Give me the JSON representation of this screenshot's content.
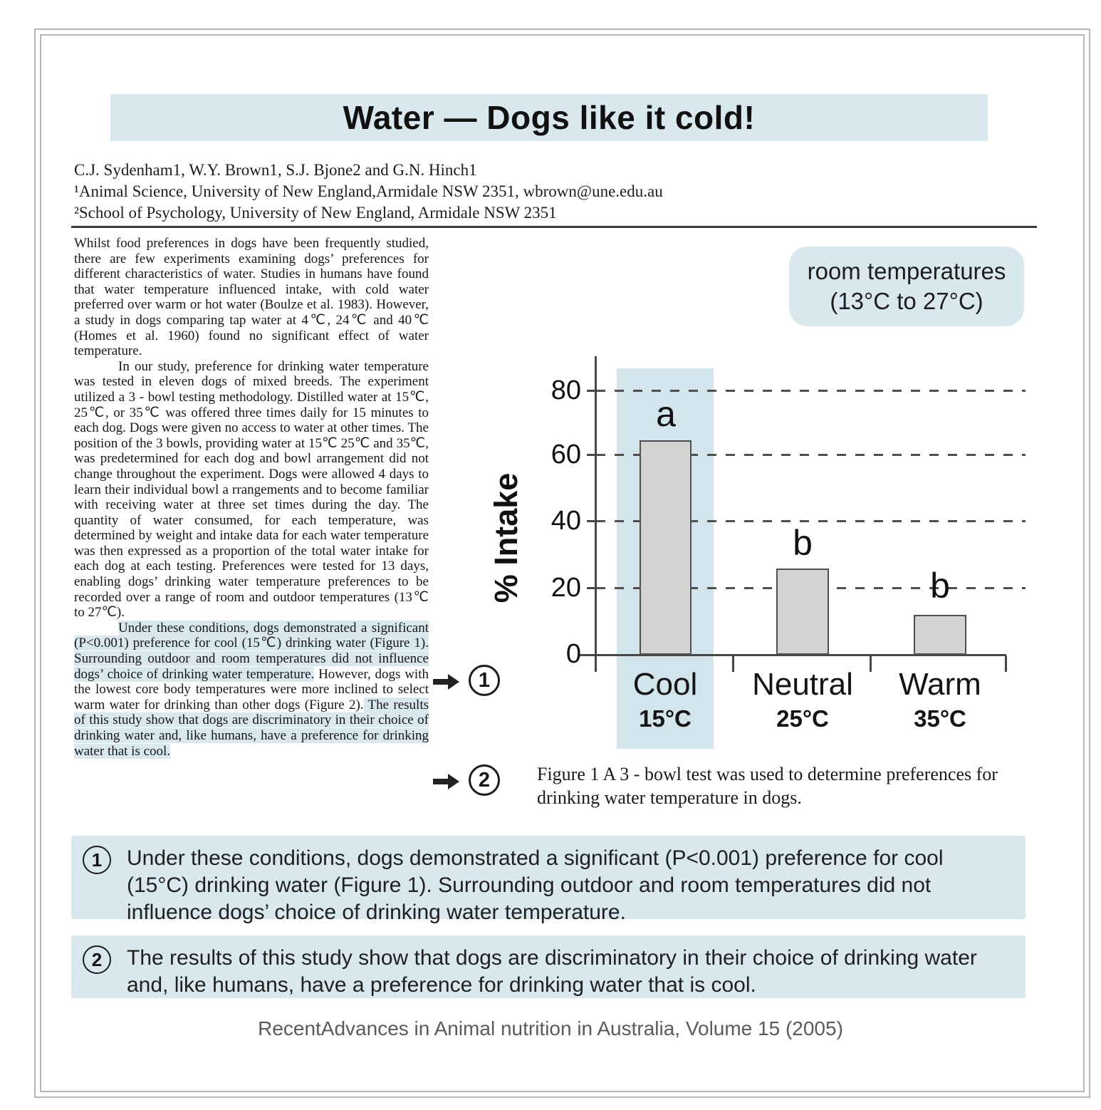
{
  "page": {
    "title": "Water — Dogs like it cold!",
    "authors_line": "C.J. Sydenham1, W.Y. Brown1, S.J. Bjone2 and G.N. Hinch1",
    "affiliation1": "¹Animal Science, University of New England,Armidale NSW 2351, wbrown@une.edu.au",
    "affiliation2": "²School of Psychology, University of New England, Armidale NSW 2351",
    "footer": "RecentAdvances in Animal nutrition in Australia, Volume 15 (2005)"
  },
  "article": {
    "p1": "Whilst food preferences in dogs have been frequently studied, there are few experiments examining dogs’ preferences for different characteristics of water. Studies in humans have found that water temperature influenced intake, with cold water preferred over warm or hot water (Boulze et al. 1983). However, a study in dogs comparing tap water at 4℃, 24℃ and 40℃ (Homes et al. 1960) found no significant effect of water temperature.",
    "p2": "In our study, preference for drinking water temperature was tested in eleven dogs of mixed breeds. The experiment utilized a 3 - bowl testing methodology. Distilled water at 15℃, 25℃, or 35℃ was offered three times daily for 15 minutes to each dog. Dogs were given no access to water at other times. The position of the 3 bowls, providing water at 15℃ 25℃ and 35℃, was predetermined for each dog and bowl arrangement did not change throughout the experiment. Dogs were allowed 4 days to learn their individual bowl a rrangements and to become familiar with receiving water at three set times during the day. The quantity of water consumed, for each temperature, was determined by weight and intake data for each water temperature was then expressed as a proportion of the total water intake for each dog at each testing. Preferences were tested for 13 days, enabling dogs’ drinking water temperature preferences to be recorded over a range of room and outdoor temperatures (13℃ to 27℃).",
    "p3_highlight1": "Under these conditions, dogs demonstrated a significant (P<0.001) preference for cool (15℃) drinking water (Figure 1). Surrounding outdoor and room temperatures did not influence dogs’ choice of drinking water temperature.",
    "p3_middle": " However, dogs with the lowest core body temperatures were more inclined to select warm water for drinking than other dogs (Figure 2).",
    "p3_highlight2": " The results of this study show that dogs are discriminatory in their choice of drinking water and, like humans, have a preference for drinking water that is cool."
  },
  "figure": {
    "room_box_line1": "room temperatures",
    "room_box_line2": "(13°C to 27°C)",
    "caption": "Figure 1  A 3 - bowl test was used to determine preferences for drinking water temperature in dogs."
  },
  "chart_data": {
    "type": "bar",
    "categories": [
      "Cool",
      "Neutral",
      "Warm"
    ],
    "category_temps": [
      "15°C",
      "25°C",
      "35°C"
    ],
    "values": [
      65,
      26,
      12
    ],
    "sig_labels": [
      "a",
      "b",
      "b"
    ],
    "title": "",
    "xlabel": "",
    "ylabel": "% Intake",
    "yticks": [
      0,
      20,
      40,
      60,
      80
    ],
    "ylim": [
      0,
      88
    ],
    "grid": "horizontal dashed at 20, 40, 60, 80",
    "legend": "none",
    "highlighted_category": "Cool",
    "annotation": "room temperatures (13°C to 27°C)"
  },
  "callouts": [
    {
      "num": "1",
      "text": "Under these conditions, dogs demonstrated a significant (P<0.001) preference for cool (15°C) drinking water (Figure 1). Surrounding outdoor and room temperatures did not influence dogs’ choice of drinking water temperature."
    },
    {
      "num": "2",
      "text": "The results of this study show that dogs are discriminatory in their choice of drinking water and, like humans, have a preference for drinking water that is cool."
    }
  ]
}
